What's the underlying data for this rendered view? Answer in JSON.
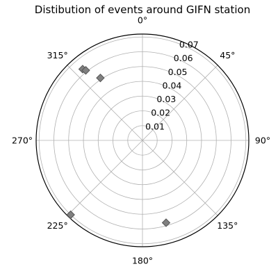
{
  "chart_data": {
    "type": "scatter",
    "projection": "polar",
    "title": "Distibution of events around GIFN station",
    "theta_direction": "clockwise",
    "theta_zero_location": "north",
    "theta_unit": "degrees",
    "theta_ticks": [
      0,
      45,
      90,
      135,
      180,
      225,
      270,
      315
    ],
    "theta_tick_labels": [
      "0°",
      "45°",
      "90°",
      "135°",
      "180°",
      "225°",
      "270°",
      "315°"
    ],
    "r_ticks": [
      0.01,
      0.02,
      0.03,
      0.04,
      0.05,
      0.06,
      0.07
    ],
    "r_tick_labels": [
      "0.01",
      "0.02",
      "0.03",
      "0.04",
      "0.05",
      "0.06",
      "0.07"
    ],
    "rlim": [
      0,
      0.072
    ],
    "grid": true,
    "marker": "diamond",
    "marker_color": "#808080",
    "marker_edge_color": "#555555",
    "series": [
      {
        "points": [
          {
            "theta": 320,
            "r": 0.063
          },
          {
            "theta": 321,
            "r": 0.061
          },
          {
            "theta": 326,
            "r": 0.051
          },
          {
            "theta": 164,
            "r": 0.058
          },
          {
            "theta": 224,
            "r": 0.07
          }
        ]
      }
    ]
  }
}
